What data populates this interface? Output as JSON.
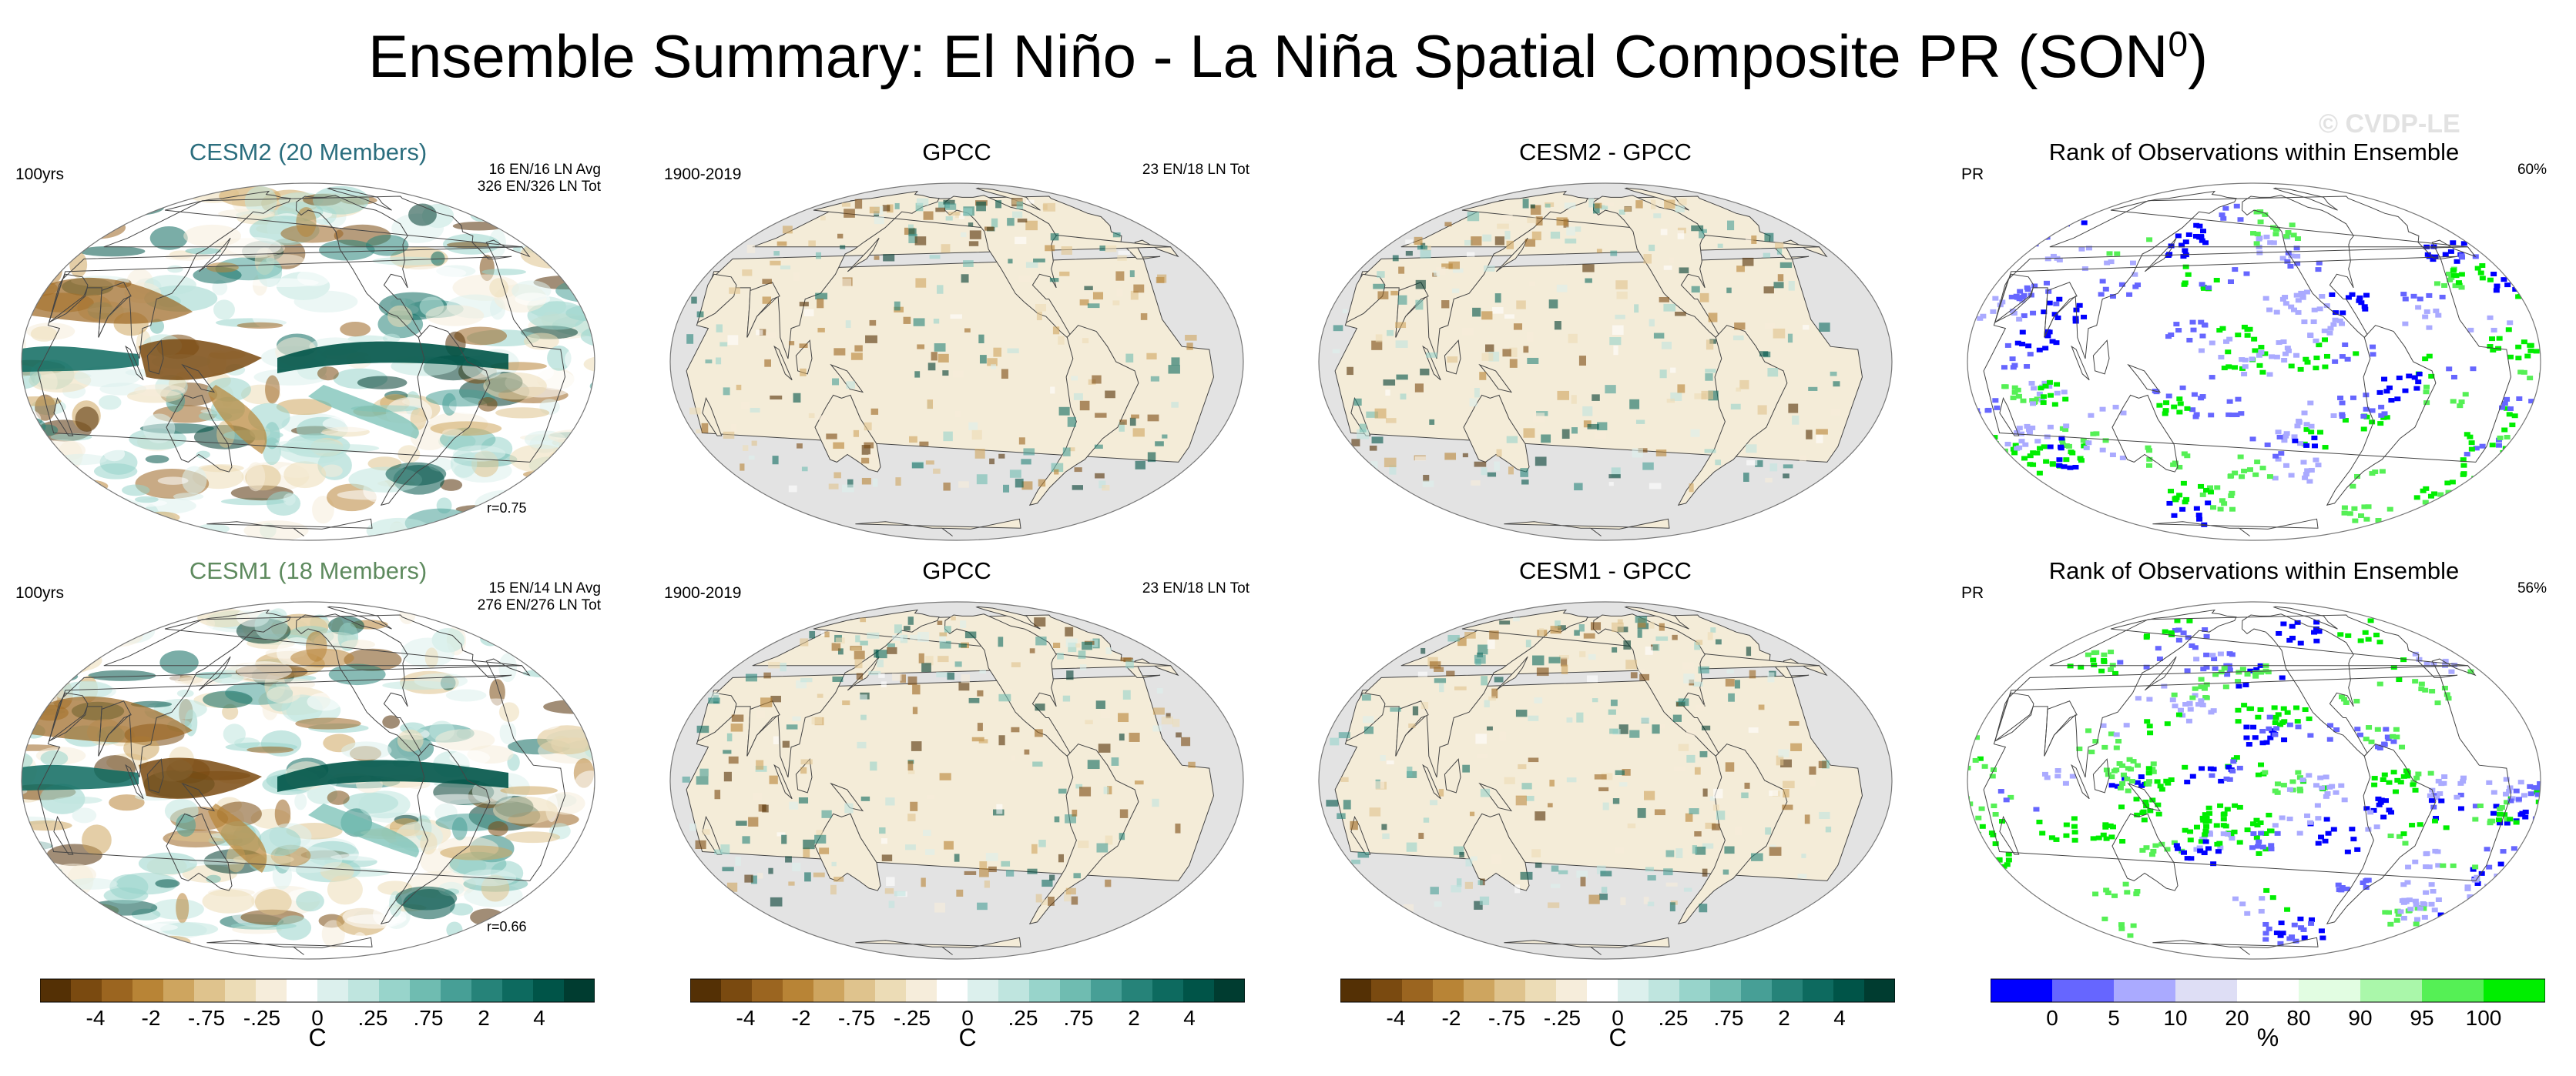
{
  "title": {
    "main": "Ensemble Summary: El Niño - La Niña Spatial Composite PR (SON",
    "sup": "0",
    "close": ")"
  },
  "watermark": "© CVDP-LE",
  "panels": [
    {
      "title": "CESM2 (20 Members)",
      "left_note": "100yrs",
      "right_note_1": "16 EN/16 LN Avg",
      "right_note_2": "326 EN/326 LN Tot",
      "corr": "r=0.75"
    },
    {
      "title": "GPCC",
      "left_note": "1900-2019",
      "right_note_1": "23 EN/18 LN Tot"
    },
    {
      "title": "CESM2 - GPCC"
    },
    {
      "title": "Rank of Observations within Ensemble",
      "left_note": "PR",
      "right_note_1": "60%"
    },
    {
      "title": "CESM1 (18 Members)",
      "left_note": "100yrs",
      "right_note_1": "15 EN/14 LN Avg",
      "right_note_2": "276 EN/276 LN Tot",
      "corr": "r=0.66"
    },
    {
      "title": "GPCC",
      "left_note": "1900-2019",
      "right_note_1": "23 EN/18 LN Tot"
    },
    {
      "title": "CESM1 - GPCC"
    },
    {
      "title": "Rank of Observations within Ensemble",
      "left_note": "PR",
      "right_note_1": "56%"
    }
  ],
  "chart_data": {
    "type": "heatmap",
    "colorbars": [
      {
        "unit": "C",
        "ticks": [
          "-4",
          "-2",
          "-.75",
          "-.25",
          "0",
          ".25",
          ".75",
          "2",
          "4"
        ],
        "colors": [
          "#543005",
          "#7a4a10",
          "#9b6520",
          "#b88436",
          "#cea55f",
          "#dfc38d",
          "#ecdcb6",
          "#f6eddb",
          "#ffffff",
          "#dcf0ed",
          "#bfe5df",
          "#98d4cb",
          "#6fbcb1",
          "#479f96",
          "#268379",
          "#0d6a5f",
          "#005448",
          "#003c30"
        ]
      },
      {
        "unit": "C",
        "ticks": [
          "-4",
          "-2",
          "-.75",
          "-.25",
          "0",
          ".25",
          ".75",
          "2",
          "4"
        ]
      },
      {
        "unit": "C",
        "ticks": [
          "-4",
          "-2",
          "-.75",
          "-.25",
          "0",
          ".25",
          ".75",
          "2",
          "4"
        ]
      },
      {
        "unit": "%",
        "ticks": [
          "0",
          "5",
          "10",
          "20",
          "80",
          "90",
          "95",
          "100"
        ],
        "colors": [
          "#0000ff",
          "#6666ff",
          "#aaaaff",
          "#dedef5",
          "#ffffff",
          "#e2fde2",
          "#aaf7aa",
          "#55f055",
          "#00ee00"
        ]
      }
    ]
  }
}
